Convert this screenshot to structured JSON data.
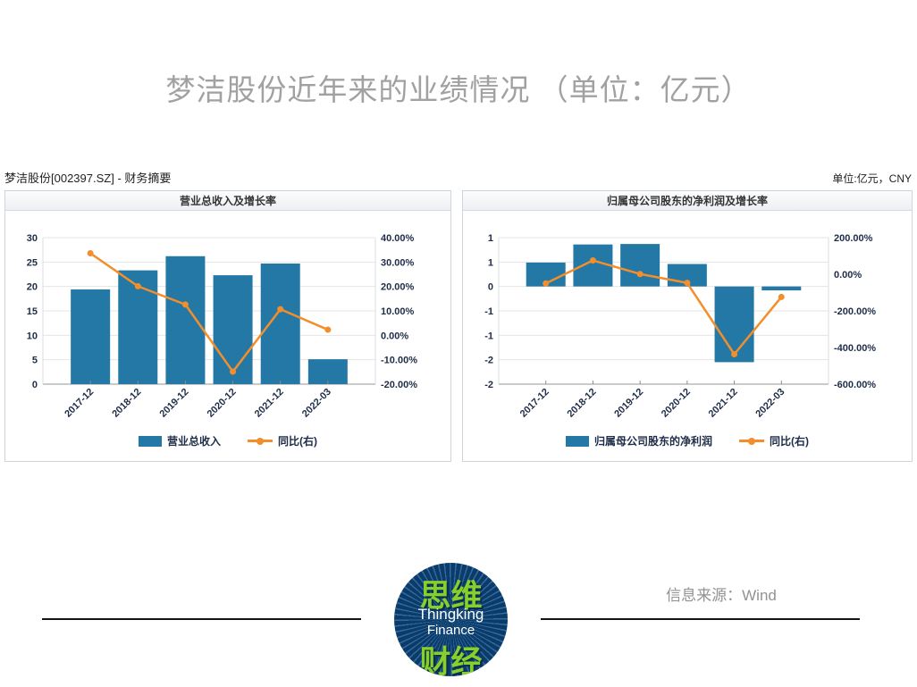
{
  "page_title": "梦洁股份近年来的业绩情况 （单位：亿元）",
  "doc_header": {
    "title": "梦洁股份[002397.SZ] - 财务摘要",
    "unit_note": "单位:亿元，CNY"
  },
  "chart_data": [
    {
      "type": "bar",
      "title": "营业总收入及增长率",
      "categories": [
        "2017-12",
        "2018-12",
        "2019-12",
        "2020-12",
        "2021-12",
        "2022-03"
      ],
      "series": [
        {
          "name": "营业总收入",
          "type": "bar",
          "axis": "left",
          "color": "#2478a5",
          "values": [
            19.4,
            23.3,
            26.2,
            22.3,
            24.7,
            5.1
          ]
        },
        {
          "name": "同比(右)",
          "type": "line",
          "axis": "right",
          "color": "#f28e2c",
          "values": [
            33.6,
            20.1,
            12.6,
            -14.9,
            10.7,
            2.3
          ]
        }
      ],
      "axes": {
        "left": {
          "min": 0,
          "max": 30,
          "ticks": [
            "30",
            "25",
            "20",
            "15",
            "10",
            "5",
            "0"
          ]
        },
        "right": {
          "min": -20,
          "max": 40,
          "ticks": [
            "40.00%",
            "30.00%",
            "20.00%",
            "10.00%",
            "0.00%",
            "-10.00%",
            "-20.00%"
          ]
        }
      },
      "ylabel": "亿元",
      "grid": true,
      "legend_position": "bottom"
    },
    {
      "type": "bar",
      "title": "归属母公司股东的净利润及增长率",
      "categories": [
        "2017-12",
        "2018-12",
        "2019-12",
        "2020-12",
        "2021-12",
        "2022-03"
      ],
      "series": [
        {
          "name": "归属母公司股东的净利润",
          "type": "bar",
          "axis": "left",
          "color": "#2478a5",
          "values": [
            0.49,
            0.86,
            0.87,
            0.46,
            -1.55,
            -0.08
          ]
        },
        {
          "name": "同比(右)",
          "type": "line",
          "axis": "right",
          "color": "#f28e2c",
          "values": [
            -50.1,
            75.5,
            1.4,
            -47.1,
            -436.6,
            -124.0
          ]
        }
      ],
      "axes": {
        "left": {
          "min": -2,
          "max": 1,
          "ticks": [
            "1",
            "1",
            "0",
            "-1",
            "-1",
            "-2",
            "-2"
          ]
        },
        "right": {
          "min": -600,
          "max": 200,
          "ticks": [
            "200.00%",
            "0.00%",
            "-200.00%",
            "-400.00%",
            "-600.00%"
          ]
        }
      },
      "ylabel": "亿元",
      "grid": true,
      "legend_position": "bottom"
    }
  ],
  "footer": {
    "source": "信息来源：Wind",
    "logo": {
      "zh_top": "思维",
      "en_line1": "Thingking",
      "en_line2": "Finance",
      "zh_bottom": "财经"
    }
  }
}
